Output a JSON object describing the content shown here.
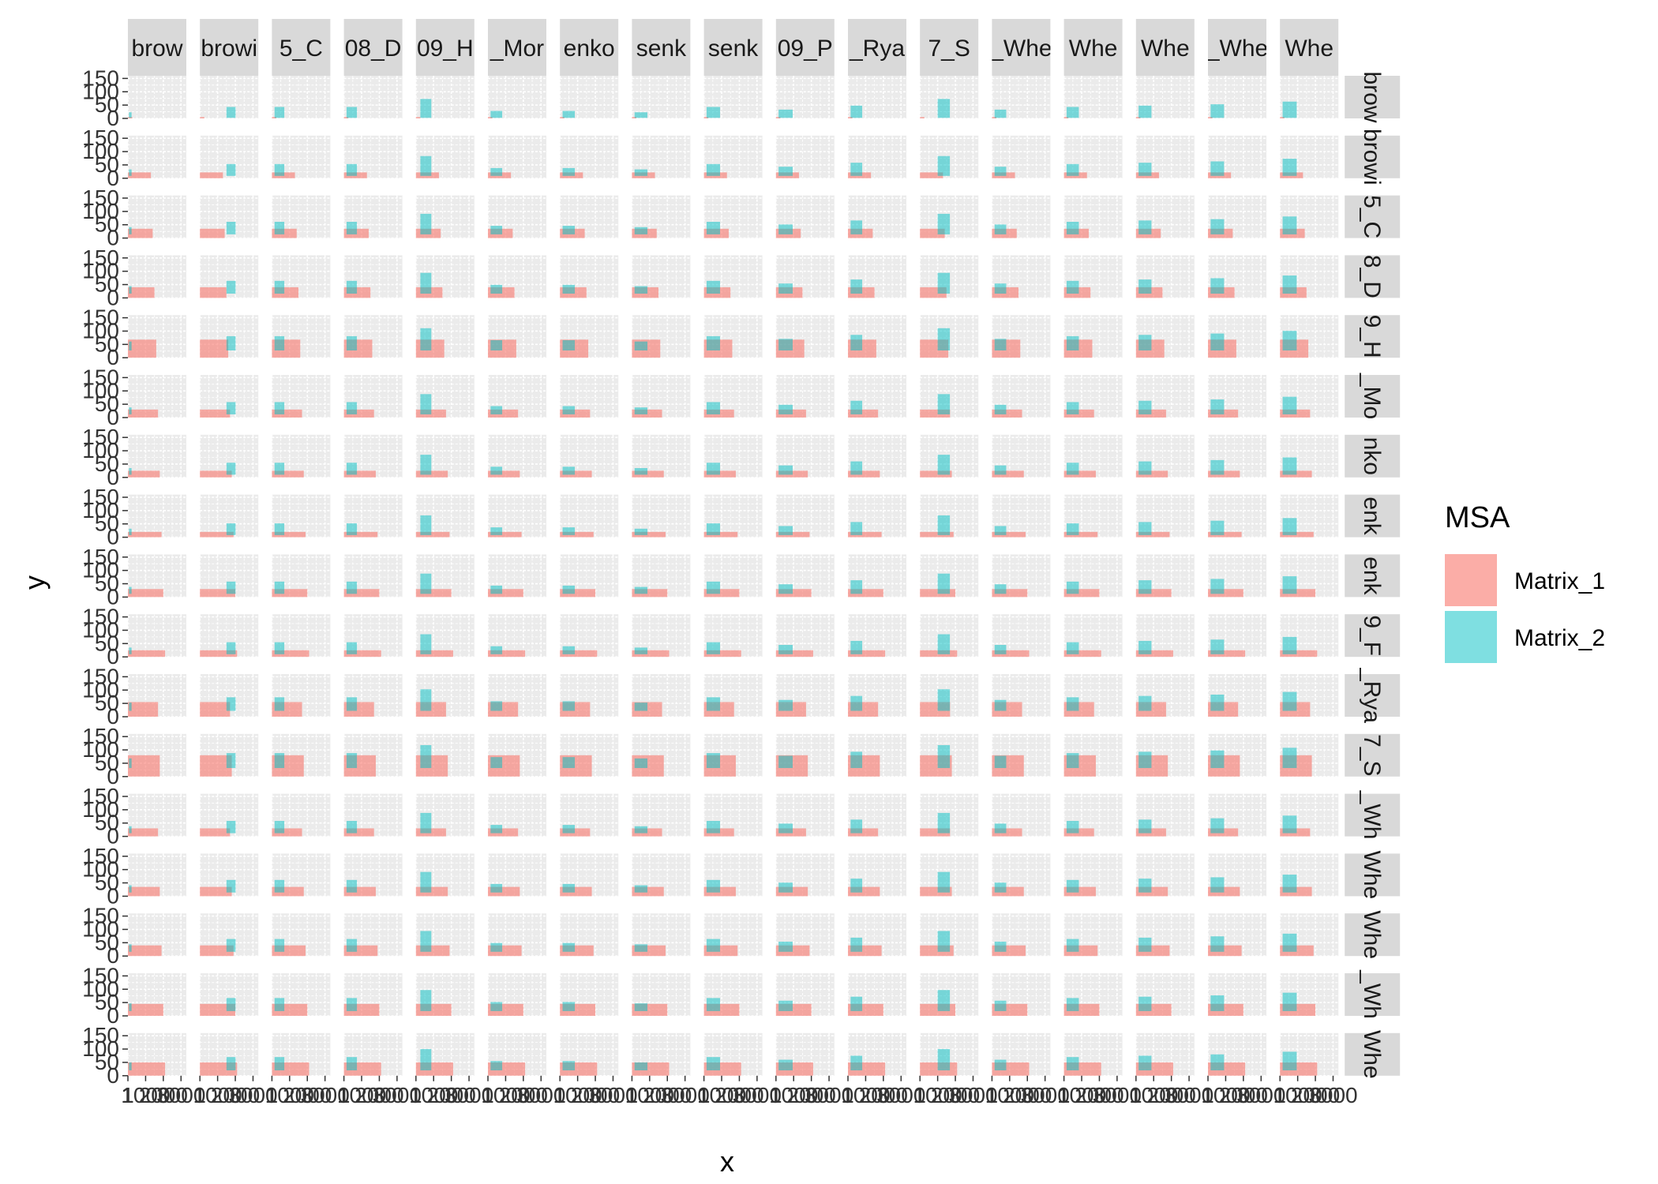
{
  "chart_data": {
    "type": "bar",
    "description_of_layout": "",
    "facet_col_labels": [
      "brow",
      "browi",
      "5_C",
      "08_D",
      "09_H",
      "_Mor",
      "enko",
      "senk",
      "senk",
      "09_P",
      "_Rya",
      "7_S",
      "_Whe",
      "Whe",
      "Whe",
      "_Whe",
      "Whe"
    ],
    "facet_row_labels": [
      "brow",
      "browi",
      "5_C",
      "8_D",
      "9_H",
      "_Mo",
      "nko",
      "enk",
      "enk",
      "9_F",
      "_Rya",
      "7_S",
      "_Wh",
      "Whe",
      "Whe",
      "_Wh",
      "Whe"
    ],
    "xlabel": "x",
    "ylabel": "y",
    "y_ticks": [
      0,
      50,
      100,
      150
    ],
    "x_ticks": [
      1,
      1000,
      2000,
      3000
    ],
    "ylim": [
      0,
      160
    ],
    "xlim": [
      0,
      3300
    ],
    "legend": {
      "title": "MSA",
      "position": "right",
      "entries": [
        {
          "name": "Matrix_1",
          "color": "#F8766D"
        },
        {
          "name": "Matrix_2",
          "color": "#00BFC4"
        }
      ]
    },
    "col_lengths": [
      250,
      1300,
      1400,
      1500,
      1600,
      1700,
      1800,
      1900,
      2000,
      2100,
      1700,
      1800,
      1700,
      1800,
      1900,
      2000,
      2100
    ],
    "col_heights": [
      5,
      22,
      35,
      40,
      68,
      30,
      25,
      20,
      30,
      25,
      55,
      80,
      30,
      35,
      40,
      45,
      50
    ],
    "col_m2_x": [
      60,
      1500,
      150,
      150,
      250,
      150,
      150,
      150,
      150,
      150,
      150,
      1000,
      150,
      150,
      150,
      150,
      150
    ],
    "col_m2_height": [
      20,
      40,
      40,
      40,
      70,
      25,
      25,
      20,
      40,
      30,
      45,
      70,
      30,
      40,
      45,
      50,
      60
    ]
  }
}
